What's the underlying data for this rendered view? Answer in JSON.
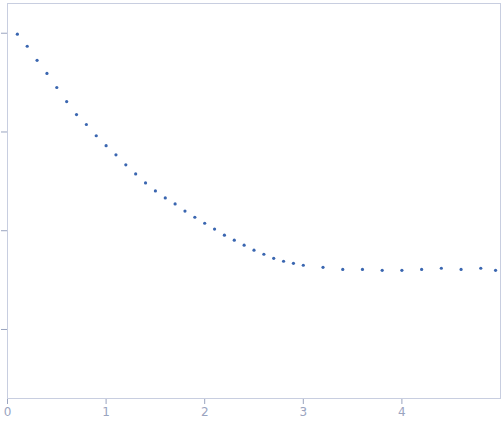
{
  "chart_data": {
    "type": "scatter",
    "log": "y",
    "tick_labels": "x",
    "color": "#3a66b0",
    "marker": "circle",
    "x": [
      0.1,
      0.2,
      0.3,
      0.4,
      0.5,
      0.6,
      0.7,
      0.8,
      0.9,
      1.0,
      1.1,
      1.2,
      1.3,
      1.4,
      1.5,
      1.6,
      1.7,
      1.8,
      1.9,
      2.0,
      2.1,
      2.2,
      2.3,
      2.4,
      2.5,
      2.6,
      2.7,
      2.8,
      2.9,
      3.0,
      3.2,
      3.4,
      3.6,
      3.8,
      4.0,
      4.2,
      4.4,
      4.6,
      4.8,
      4.95
    ],
    "values": [
      977,
      738,
      531,
      392,
      282,
      203,
      150,
      119,
      91.6,
      72.6,
      58.7,
      46.5,
      37.6,
      30.5,
      25.3,
      21.5,
      18.7,
      15.8,
      13.7,
      11.9,
      10.4,
      9.02,
      8.02,
      7.14,
      6.35,
      5.78,
      5.26,
      4.91,
      4.68,
      4.47,
      4.26,
      4.06,
      4.06,
      3.97,
      3.97,
      4.06,
      4.17,
      4.06,
      4.17,
      3.97
    ],
    "xlim": [
      0,
      5
    ],
    "xticks": [
      0,
      1,
      2,
      3,
      4
    ],
    "ylim": [
      0.2,
      2000
    ],
    "yticks": [
      1,
      10,
      100,
      1000
    ]
  }
}
